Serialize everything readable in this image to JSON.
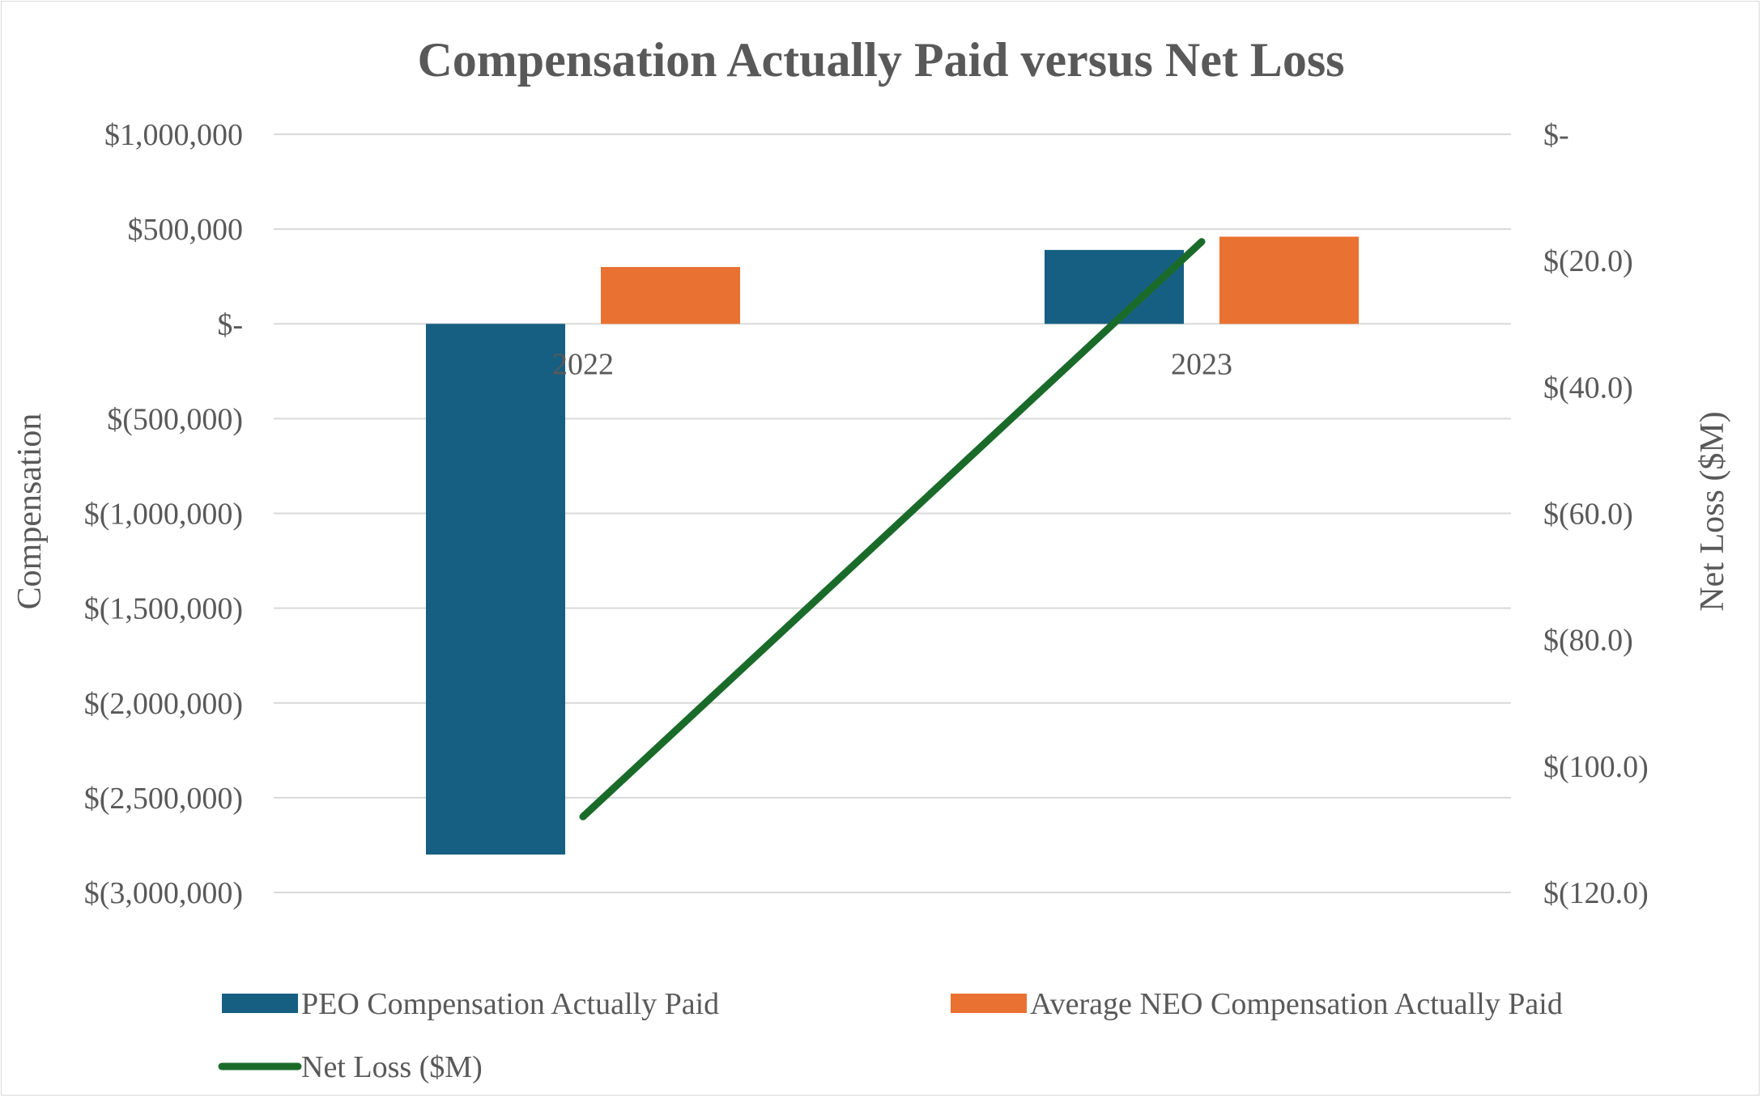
{
  "chart_data": {
    "type": "bar",
    "title": "Compensation Actually Paid versus Net Loss",
    "categories": [
      "2022",
      "2023"
    ],
    "ylabel": "Compensation",
    "y2label": "Net Loss ($M)",
    "ylim": [
      -3000000,
      1000000
    ],
    "y2lim": [
      -120,
      0
    ],
    "y_ticks": [
      {
        "value": 1000000,
        "label": "$1,000,000"
      },
      {
        "value": 500000,
        "label": "$500,000"
      },
      {
        "value": 0,
        "label": "$-"
      },
      {
        "value": -500000,
        "label": "$(500,000)"
      },
      {
        "value": -1000000,
        "label": "$(1,000,000)"
      },
      {
        "value": -1500000,
        "label": "$(1,500,000)"
      },
      {
        "value": -2000000,
        "label": "$(2,000,000)"
      },
      {
        "value": -2500000,
        "label": "$(2,500,000)"
      },
      {
        "value": -3000000,
        "label": "$(3,000,000)"
      }
    ],
    "y2_ticks": [
      {
        "value": 0,
        "label": "$-"
      },
      {
        "value": -20,
        "label": "$(20.0)"
      },
      {
        "value": -40,
        "label": "$(40.0)"
      },
      {
        "value": -60,
        "label": "$(60.0)"
      },
      {
        "value": -80,
        "label": "$(80.0)"
      },
      {
        "value": -100,
        "label": "$(100.0)"
      },
      {
        "value": -120,
        "label": "$(120.0)"
      }
    ],
    "grid": true,
    "legend_position": "bottom",
    "series": [
      {
        "name": "PEO Compensation Actually Paid",
        "type": "bar",
        "axis": "left",
        "color": "#175f82",
        "values": [
          -2800000,
          390000
        ]
      },
      {
        "name": "Average NEO Compensation Actually Paid",
        "type": "bar",
        "axis": "left",
        "color": "#e97132",
        "values": [
          300000,
          460000
        ]
      },
      {
        "name": "Net Loss ($M)",
        "type": "line",
        "axis": "right",
        "color": "#1a6b2a",
        "values": [
          -108,
          -17
        ]
      }
    ]
  }
}
